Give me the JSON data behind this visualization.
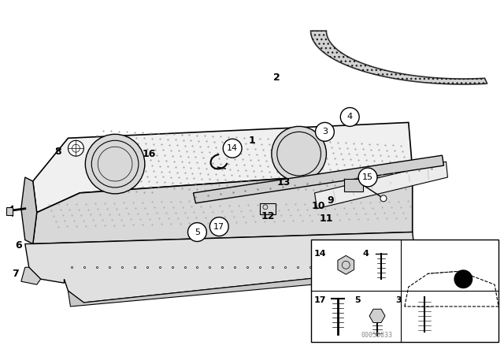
{
  "bg_color": "#ffffff",
  "circled": [
    3,
    4,
    5,
    8,
    14,
    15,
    17
  ],
  "watermark": "00050033"
}
